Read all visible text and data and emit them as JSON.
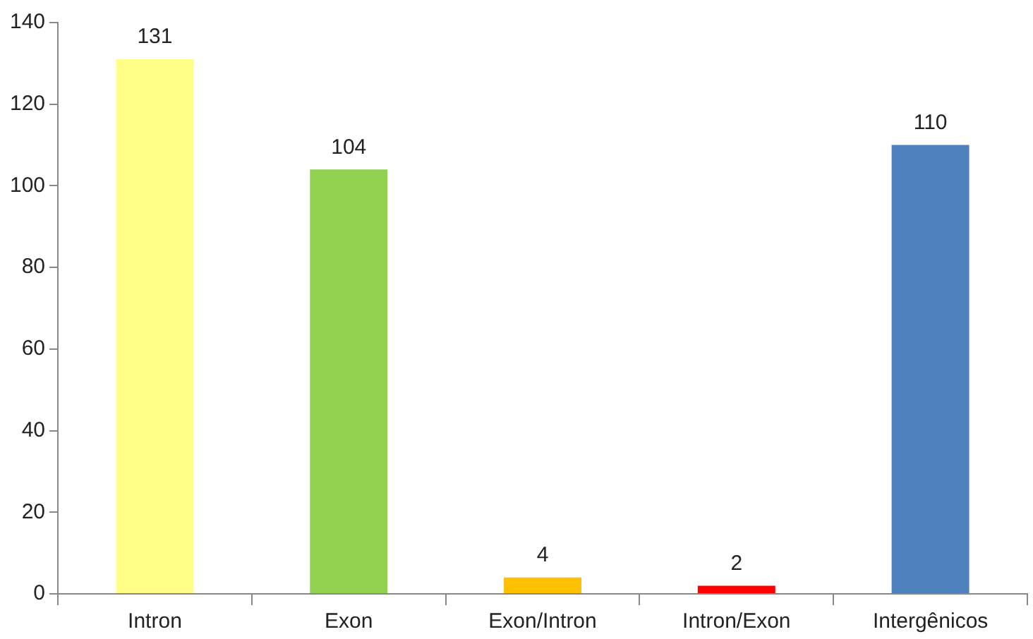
{
  "chart_data": {
    "type": "bar",
    "categories": [
      "Intron",
      "Exon",
      "Exon/Intron",
      "Intron/Exon",
      "Intergênicos"
    ],
    "values": [
      131,
      104,
      4,
      2,
      110
    ],
    "colors": [
      "#ffff88",
      "#92d050",
      "#ffc000",
      "#ff0000",
      "#4f81bd"
    ],
    "ylim": [
      0,
      140
    ],
    "yticks": [
      0,
      20,
      40,
      60,
      80,
      100,
      120,
      140
    ],
    "grid": false,
    "legend": false,
    "data_labels": true
  }
}
